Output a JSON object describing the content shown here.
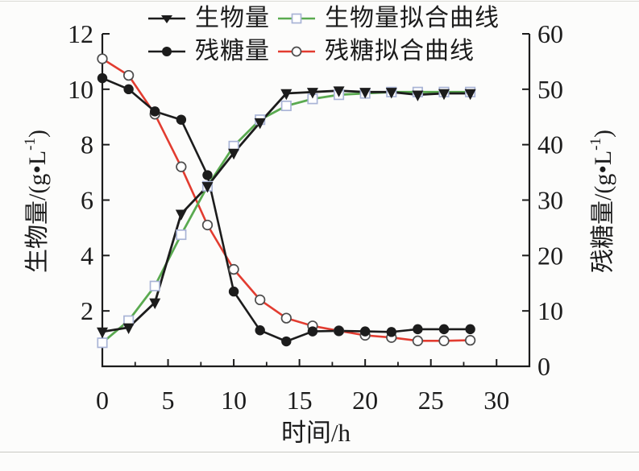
{
  "figure": {
    "legend": [
      {
        "label": "生物量"
      },
      {
        "label": "生物量拟合曲线"
      },
      {
        "label": "残糖量"
      },
      {
        "label": "残糖拟合曲线"
      }
    ]
  },
  "chart_data": {
    "type": "line",
    "title": "",
    "xlabel": "时间/h",
    "ylabel_left": {
      "pre": "生物量/(g•L",
      "sup": "-1",
      "post": ")"
    },
    "ylabel_right": {
      "pre": "残糖量/(g•L",
      "sup": "-1",
      "post": ")"
    },
    "x": [
      0,
      2,
      4,
      6,
      8,
      10,
      12,
      14,
      16,
      18,
      20,
      22,
      24,
      26,
      28
    ],
    "series": [
      {
        "name": "生物量",
        "axis": "left",
        "marker": "triangle-down-filled",
        "color": "#1c1c1c",
        "values": [
          1.25,
          1.4,
          2.3,
          5.5,
          6.5,
          7.7,
          8.8,
          9.85,
          9.9,
          9.95,
          9.9,
          9.9,
          9.8,
          9.85,
          9.85
        ]
      },
      {
        "name": "生物量拟合曲线",
        "axis": "left",
        "marker": "square-open",
        "color": "#5aaa50",
        "marker_stroke": "#a9b4d6",
        "values": [
          0.85,
          1.65,
          2.9,
          4.75,
          6.5,
          7.95,
          8.9,
          9.4,
          9.65,
          9.8,
          9.85,
          9.9,
          9.9,
          9.9,
          9.9
        ]
      },
      {
        "name": "残糖量",
        "axis": "right",
        "marker": "circle-filled",
        "color": "#1c1c1c",
        "values": [
          52,
          50,
          46,
          44.5,
          34.5,
          13.5,
          6.5,
          4.5,
          6.3,
          6.4,
          6.3,
          6.2,
          6.7,
          6.7,
          6.7
        ]
      },
      {
        "name": "残糖拟合曲线",
        "axis": "right",
        "marker": "circle-open",
        "color": "#e23c30",
        "marker_stroke": "#4d4d4d",
        "values": [
          55.5,
          52.5,
          45.5,
          36,
          25.5,
          17.5,
          12,
          8.7,
          7.3,
          6.4,
          5.6,
          5.2,
          4.6,
          4.6,
          4.7
        ]
      }
    ],
    "xlim": [
      0,
      32.5
    ],
    "ylim_left": [
      0,
      12
    ],
    "ylim_right": [
      0,
      60
    ],
    "xticks": [
      0,
      5,
      10,
      15,
      20,
      25,
      30
    ],
    "xticks_minor": [
      2.5,
      7.5,
      12.5,
      17.5,
      22.5,
      27.5
    ],
    "yticks_left": [
      2,
      4,
      6,
      8,
      10,
      12
    ],
    "yticks_right": [
      0,
      10,
      20,
      30,
      40,
      50,
      60
    ],
    "grid": false,
    "legend_position": "top-center",
    "axis_color": "#1c1c1c"
  }
}
